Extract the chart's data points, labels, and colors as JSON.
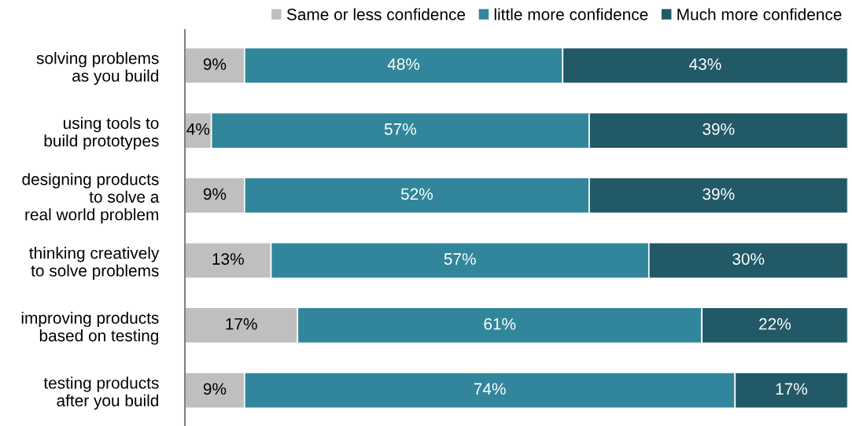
{
  "chart_data": {
    "type": "bar",
    "orientation": "horizontal",
    "stacked": true,
    "legend": "top",
    "grid": false,
    "tick_labels": "y",
    "xlim": [
      0,
      100
    ],
    "categories": [
      "solving problems\nas you build",
      "using tools to\nbuild prototypes",
      "designing products\nto solve a\nreal world problem",
      "thinking creatively\nto solve problems",
      "improving products\nbased on testing",
      "testing products\nafter you build"
    ],
    "series": [
      {
        "name": "Same or less confidence",
        "color": "#bfbfbf",
        "values": [
          9,
          4,
          9,
          13,
          17,
          9
        ],
        "value_labels": [
          "9%",
          "4%",
          "9%",
          "13%",
          "17%",
          "9%"
        ]
      },
      {
        "name": "little more confidence",
        "color": "#31869b",
        "values": [
          48,
          57,
          52,
          57,
          61,
          74
        ],
        "value_labels": [
          "48%",
          "57%",
          "52%",
          "57%",
          "61%",
          "74%"
        ]
      },
      {
        "name": "Much more confidence",
        "color": "#215967",
        "values": [
          43,
          39,
          39,
          30,
          22,
          17
        ],
        "value_labels": [
          "43%",
          "39%",
          "39%",
          "30%",
          "22%",
          "17%"
        ]
      }
    ]
  }
}
